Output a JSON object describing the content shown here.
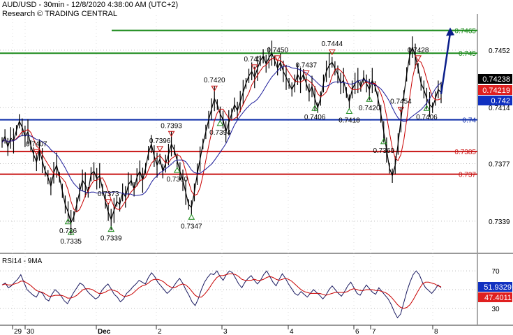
{
  "header": {
    "title": "AUD/USD - 30min - 12/8/2020 4:38:00 AM (UTC+2)",
    "subtitle": "Research © TRADING CENTRAL"
  },
  "chart_data": [
    {
      "type": "line",
      "title": "AUD/USD - 30min - 12/8/2020 4:38:00 AM (UTC+2)",
      "ylim": [
        0.732,
        0.7475
      ],
      "x_ticks": [
        "29",
        "30",
        "Dec",
        "2",
        "3",
        "4",
        "6",
        "7",
        "8"
      ],
      "y_ticks": [
        0.7452,
        0.7414,
        0.7377,
        0.7339
      ],
      "levels": [
        {
          "value": 0.7465,
          "label": "0.7465",
          "color": "#1b8a1b",
          "role": "resistance"
        },
        {
          "value": 0.745,
          "label": "0.745",
          "color": "#1b8a1b",
          "role": "resistance"
        },
        {
          "value": 0.7406,
          "label": "0.74",
          "color": "#0a2aa8",
          "role": "pivot"
        },
        {
          "value": 0.7385,
          "label": "0.7385",
          "color": "#c81414",
          "role": "support"
        },
        {
          "value": 0.737,
          "label": "0.737",
          "color": "#c81414",
          "role": "support"
        }
      ],
      "projection": {
        "from": 0.7423,
        "to": 0.7467,
        "color": "#0a1e8a"
      },
      "price_tags": [
        {
          "label": "0.74238",
          "bg": "#000000",
          "fg": "#ffffff"
        },
        {
          "label": "0.74219",
          "bg": "#e02020",
          "fg": "#ffffff"
        },
        {
          "label": "0.742",
          "bg": "#1030c0",
          "fg": "#ffffff"
        }
      ],
      "series": [
        {
          "name": "AUD/USD",
          "color": "#000000",
          "values": [
            0.7391,
            0.7395,
            0.7388,
            0.7394,
            0.7392,
            0.7399,
            0.7405,
            0.7401,
            0.7395,
            0.7398,
            0.7389,
            0.7383,
            0.7378,
            0.7386,
            0.7379,
            0.7372,
            0.7368,
            0.7362,
            0.7371,
            0.7376,
            0.7368,
            0.7359,
            0.735,
            0.7345,
            0.7338,
            0.7342,
            0.735,
            0.7358,
            0.7366,
            0.7363,
            0.7358,
            0.737,
            0.7372,
            0.7367,
            0.7369,
            0.736,
            0.7352,
            0.7345,
            0.734,
            0.7346,
            0.7352,
            0.735,
            0.7358,
            0.7355,
            0.7363,
            0.7366,
            0.736,
            0.7368,
            0.7372,
            0.7366,
            0.7374,
            0.7384,
            0.739,
            0.7382,
            0.7376,
            0.738,
            0.7372,
            0.7377,
            0.7383,
            0.739,
            0.7386,
            0.7379,
            0.7372,
            0.7366,
            0.7358,
            0.735,
            0.7348,
            0.7358,
            0.737,
            0.738,
            0.739,
            0.7398,
            0.7406,
            0.7413,
            0.742,
            0.7416,
            0.741,
            0.7406,
            0.7398,
            0.7404,
            0.741,
            0.7416,
            0.7412,
            0.7418,
            0.7424,
            0.743,
            0.7435,
            0.7438,
            0.7434,
            0.744,
            0.7445,
            0.7448,
            0.7443,
            0.7447,
            0.745,
            0.7445,
            0.744,
            0.7444,
            0.7438,
            0.7434,
            0.743,
            0.7426,
            0.743,
            0.7436,
            0.7432,
            0.7436,
            0.743,
            0.7424,
            0.7428,
            0.742,
            0.7414,
            0.742,
            0.743,
            0.7438,
            0.7442,
            0.7444,
            0.744,
            0.7436,
            0.743,
            0.7432,
            0.7424,
            0.7418,
            0.7426,
            0.743,
            0.7432,
            0.7428,
            0.7434,
            0.743,
            0.7426,
            0.7432,
            0.7428,
            0.742,
            0.741,
            0.7398,
            0.7386,
            0.7374,
            0.7369,
            0.7376,
            0.739,
            0.7406,
            0.7422,
            0.7436,
            0.7448,
            0.7454,
            0.7448,
            0.744,
            0.743,
            0.7426,
            0.742,
            0.7416,
            0.7414,
            0.742,
            0.7426,
            0.7424
          ]
        },
        {
          "name": "MA fast",
          "color": "#c80000"
        },
        {
          "name": "MA slow",
          "color": "#1a1a9a"
        }
      ],
      "annotations": [
        {
          "label": "0.7407",
          "kind": "high"
        },
        {
          "label": "0.736",
          "kind": "low"
        },
        {
          "label": "0.7335",
          "kind": "low"
        },
        {
          "label": "0.7373",
          "kind": "high"
        },
        {
          "label": "0.7339",
          "kind": "low"
        },
        {
          "label": "0.7396",
          "kind": "high"
        },
        {
          "label": "0.7393",
          "kind": "high"
        },
        {
          "label": "0.7360",
          "kind": "low"
        },
        {
          "label": "0.7347",
          "kind": "low"
        },
        {
          "label": "0.7394",
          "kind": "low"
        },
        {
          "label": "0.7420",
          "kind": "high"
        },
        {
          "label": "0.7437",
          "kind": "high"
        },
        {
          "label": "0.7450",
          "kind": "high"
        },
        {
          "label": "0.7437",
          "kind": "high"
        },
        {
          "label": "0.7406",
          "kind": "low"
        },
        {
          "label": "0.7444",
          "kind": "high"
        },
        {
          "label": "0.7418",
          "kind": "low"
        },
        {
          "label": "0.7420",
          "kind": "low"
        },
        {
          "label": "0.7369",
          "kind": "low"
        },
        {
          "label": "0.7454",
          "kind": "high"
        },
        {
          "label": "0.7428",
          "kind": "high"
        },
        {
          "label": "0.7406",
          "kind": "low"
        }
      ]
    },
    {
      "type": "line",
      "title": "RSI14 - 9MA",
      "ylim": [
        15,
        85
      ],
      "y_ticks": [
        70,
        30
      ],
      "gridlines": [
        70,
        50,
        30
      ],
      "price_tags": [
        {
          "label": "51.9329",
          "bg": "#1030c0",
          "fg": "#ffffff"
        },
        {
          "label": "47.4011",
          "bg": "#e02020",
          "fg": "#ffffff"
        }
      ],
      "series": [
        {
          "name": "RSI14",
          "color": "#1a1a60",
          "values": [
            55,
            57,
            52,
            54,
            58,
            61,
            66,
            58,
            50,
            47,
            44,
            42,
            48,
            46,
            40,
            38,
            45,
            50,
            47,
            43,
            38,
            35,
            41,
            47,
            52,
            57,
            55,
            50,
            46,
            43,
            40,
            42,
            49,
            53,
            56,
            51,
            45,
            42,
            37,
            40,
            46,
            49,
            53,
            56,
            60,
            58,
            56,
            63,
            68,
            64,
            58,
            54,
            50,
            46,
            49,
            53,
            58,
            62,
            57,
            50,
            44,
            37,
            33,
            40,
            50,
            58,
            63,
            67,
            66,
            70,
            64,
            60,
            66,
            70,
            68,
            62,
            56,
            52,
            58,
            62,
            65,
            60,
            56,
            60,
            66,
            70,
            64,
            58,
            54,
            61,
            67,
            62,
            56,
            51,
            46,
            44,
            48,
            45,
            42,
            46,
            50,
            47,
            44,
            40,
            44,
            50,
            54,
            50,
            46,
            43,
            48,
            54,
            58,
            52,
            46,
            44,
            50,
            55,
            51,
            47,
            45,
            52,
            48,
            44,
            40,
            34,
            26,
            20,
            24,
            36,
            48,
            58,
            66,
            70,
            66,
            58,
            52,
            49,
            46,
            50,
            55,
            52
          ]
        },
        {
          "name": "9MA",
          "color": "#c80000",
          "values": [
            55,
            56,
            55,
            55,
            56,
            57,
            59,
            59,
            57,
            55,
            52,
            49,
            48,
            47,
            45,
            43,
            43,
            44,
            44,
            44,
            43,
            41,
            41,
            42,
            44,
            47,
            50,
            51,
            51,
            50,
            48,
            46,
            46,
            47,
            49,
            50,
            49,
            48,
            45,
            43,
            43,
            44,
            46,
            49,
            52,
            54,
            55,
            57,
            60,
            61,
            61,
            60,
            58,
            55,
            53,
            52,
            53,
            55,
            56,
            55,
            52,
            48,
            44,
            42,
            42,
            45,
            49,
            54,
            59,
            63,
            65,
            65,
            66,
            67,
            67,
            66,
            64,
            61,
            60,
            60,
            60,
            61,
            60,
            60,
            61,
            63,
            64,
            63,
            61,
            60,
            61,
            62,
            61,
            59,
            56,
            53,
            50,
            48,
            47,
            46,
            46,
            46,
            46,
            45,
            44,
            45,
            46,
            47,
            47,
            47,
            47,
            48,
            50,
            51,
            50,
            49,
            49,
            50,
            50,
            50,
            49,
            49,
            48,
            47,
            45,
            42,
            38,
            34,
            31,
            30,
            31,
            34,
            39,
            45,
            51,
            56,
            58,
            58,
            57,
            56,
            54,
            53
          ]
        }
      ]
    }
  ]
}
